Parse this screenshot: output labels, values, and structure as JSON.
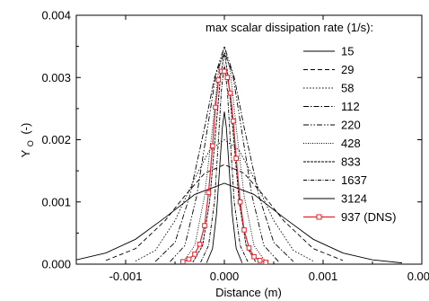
{
  "chart_data": {
    "type": "line",
    "title": "",
    "xlabel": "Distance (m)",
    "ylabel_main": "Y",
    "ylabel_sub": "O",
    "ylabel_unit": "(-)",
    "xlim": [
      -0.0015,
      0.002
    ],
    "ylim": [
      0,
      0.004
    ],
    "x_ticks": [
      -0.001,
      0.0,
      0.001,
      0.002
    ],
    "x_tick_labels": [
      "-0.001",
      "0.000",
      "0.001",
      "0.002"
    ],
    "y_ticks": [
      0.0,
      0.001,
      0.002,
      0.003,
      0.004
    ],
    "y_tick_labels": [
      "0.000",
      "0.001",
      "0.002",
      "0.003",
      "0.004"
    ],
    "grid": false,
    "legend": {
      "title": "max scalar dissipation rate (1/s):",
      "placement": "top-right",
      "items": [
        "15",
        "29",
        "58",
        "112",
        "220",
        "428",
        "833",
        "1637",
        "3124",
        "937 (DNS)"
      ]
    },
    "series": [
      {
        "name": "15",
        "style": "solid",
        "color": "#000000",
        "x": [
          -0.0015,
          -0.0012,
          -0.0009,
          -0.0006,
          -0.0003,
          0.0,
          0.0003,
          0.0006,
          0.0009,
          0.0012,
          0.0015,
          0.0018
        ],
        "y": [
          7e-05,
          0.00018,
          0.0004,
          0.00075,
          0.00112,
          0.0013,
          0.00112,
          0.00075,
          0.0004,
          0.00018,
          7e-05,
          2e-05
        ]
      },
      {
        "name": "29",
        "style": "dashed",
        "color": "#000000",
        "x": [
          -0.0012,
          -0.0009,
          -0.0006,
          -0.0004,
          -0.0002,
          0.0,
          0.0002,
          0.0004,
          0.0006,
          0.0009,
          0.0012
        ],
        "y": [
          6e-05,
          0.00025,
          0.0007,
          0.0011,
          0.00146,
          0.0016,
          0.00146,
          0.0011,
          0.0007,
          0.00025,
          6e-05
        ]
      },
      {
        "name": "58",
        "style": "dotted",
        "color": "#000000",
        "x": [
          -0.0009,
          -0.0007,
          -0.0005,
          -0.0003,
          -0.00015,
          0.0,
          0.00015,
          0.0003,
          0.0005,
          0.0007,
          0.0009
        ],
        "y": [
          5e-05,
          0.00022,
          0.0007,
          0.00138,
          0.00183,
          0.002,
          0.00183,
          0.00138,
          0.0007,
          0.00022,
          5e-05
        ]
      },
      {
        "name": "112",
        "style": "dashdot",
        "color": "#000000",
        "x": [
          -0.0007,
          -0.0005,
          -0.00035,
          -0.0002,
          -0.0001,
          0.0,
          0.0001,
          0.0002,
          0.00035,
          0.0005,
          0.0007
        ],
        "y": [
          4e-05,
          0.00035,
          0.0011,
          0.0022,
          0.003,
          0.0034,
          0.003,
          0.0022,
          0.0011,
          0.00035,
          4e-05
        ]
      },
      {
        "name": "220",
        "style": "dashdotdot",
        "color": "#000000",
        "x": [
          -0.00055,
          -0.0004,
          -0.00028,
          -0.00016,
          -8e-05,
          0.0,
          8e-05,
          0.00016,
          0.00028,
          0.0004,
          0.00055
        ],
        "y": [
          4e-05,
          0.0003,
          0.0011,
          0.0023,
          0.0031,
          0.0035,
          0.0031,
          0.0023,
          0.0011,
          0.0003,
          4e-05
        ]
      },
      {
        "name": "428",
        "style": "shortdot",
        "color": "#000000",
        "x": [
          -0.00042,
          -0.0003,
          -0.0002,
          -0.00012,
          -6e-05,
          0.0,
          6e-05,
          0.00012,
          0.0002,
          0.0003,
          0.00042
        ],
        "y": [
          3e-05,
          0.0003,
          0.0011,
          0.0022,
          0.0031,
          0.0035,
          0.0031,
          0.0022,
          0.0011,
          0.0003,
          3e-05
        ]
      },
      {
        "name": "833",
        "style": "fine",
        "color": "#000000",
        "x": [
          -0.00032,
          -0.00022,
          -0.00015,
          -9e-05,
          -4e-05,
          0.0,
          4e-05,
          9e-05,
          0.00015,
          0.00022,
          0.00032
        ],
        "y": [
          3e-05,
          0.0003,
          0.001,
          0.0021,
          0.003,
          0.0034,
          0.003,
          0.0021,
          0.001,
          0.0003,
          3e-05
        ]
      },
      {
        "name": "1637",
        "style": "dashdotfine",
        "color": "#000000",
        "x": [
          -0.00024,
          -0.00016,
          -0.0001,
          -6e-05,
          -3e-05,
          0.0,
          3e-05,
          6e-05,
          0.0001,
          0.00016,
          0.00024
        ],
        "y": [
          3e-05,
          0.0003,
          0.001,
          0.002,
          0.0028,
          0.0032,
          0.0028,
          0.002,
          0.001,
          0.0003,
          3e-05
        ]
      },
      {
        "name": "3124",
        "style": "solid",
        "color": "#000000",
        "x": [
          -0.00018,
          -0.00012,
          -8e-05,
          -5e-05,
          -2e-05,
          0.0,
          2e-05,
          5e-05,
          8e-05,
          0.00012,
          0.00018
        ],
        "y": [
          2e-05,
          0.00025,
          0.0008,
          0.0015,
          0.0022,
          0.00245,
          0.0022,
          0.0015,
          0.0008,
          0.00025,
          2e-05
        ]
      },
      {
        "name": "937 (DNS)",
        "style": "solid-marker",
        "color": "#e8202a",
        "x": [
          -0.00042,
          -0.00036,
          -0.0003,
          -0.00025,
          -0.0002,
          -0.00016,
          -0.00012,
          -9e-05,
          -6e-05,
          -3e-05,
          0.0,
          3e-05,
          6e-05,
          9e-05,
          0.00012,
          0.00016,
          0.0002,
          0.00025,
          0.0003,
          0.00036,
          0.00042
        ],
        "y": [
          4e-05,
          8e-05,
          0.00016,
          0.00032,
          0.00062,
          0.00115,
          0.0019,
          0.00252,
          0.00296,
          0.0031,
          0.0031,
          0.003,
          0.00275,
          0.0023,
          0.0017,
          0.001,
          0.00055,
          0.00026,
          0.00012,
          6e-05,
          3e-05
        ]
      }
    ]
  }
}
